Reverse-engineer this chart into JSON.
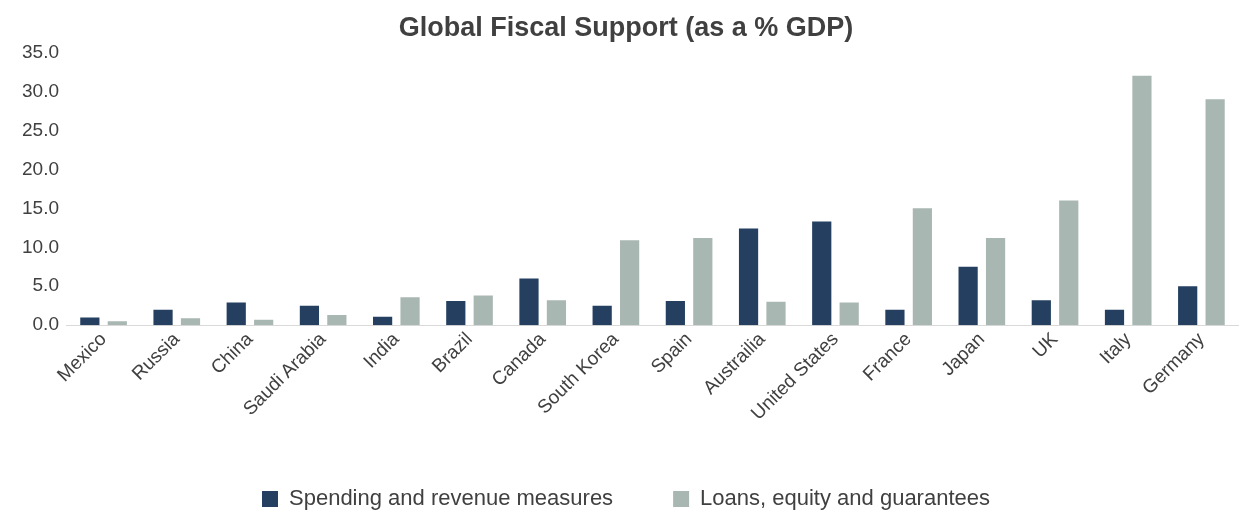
{
  "chart_data": {
    "type": "bar",
    "title": "Global Fiscal Support (as a % GDP)",
    "categories": [
      "Mexico",
      "Russia",
      "China",
      "Saudi Arabia",
      "India",
      "Brazil",
      "Canada",
      "South Korea",
      "Spain",
      "Austrailia",
      "United States",
      "France",
      "Japan",
      "UK",
      "Italy",
      "Germany"
    ],
    "series": [
      {
        "name": "Spending and revenue measures",
        "color": "#243f60",
        "values": [
          1.0,
          2.0,
          2.9,
          2.5,
          1.1,
          3.1,
          6.0,
          2.5,
          3.1,
          12.4,
          13.3,
          2.0,
          7.5,
          3.2,
          2.0,
          5.0
        ]
      },
      {
        "name": "Loans, equity and guarantees",
        "color": "#a9b7b3",
        "values": [
          0.5,
          0.9,
          0.7,
          1.3,
          3.6,
          3.8,
          3.2,
          10.9,
          11.2,
          3.0,
          2.9,
          15.0,
          11.2,
          16.0,
          32.0,
          29.0
        ]
      }
    ],
    "ylim": [
      0,
      35
    ],
    "yticks": [
      {
        "value": 0,
        "label": "0.0"
      },
      {
        "value": 5,
        "label": "5.0"
      },
      {
        "value": 10,
        "label": "10.0"
      },
      {
        "value": 15,
        "label": "15.0"
      },
      {
        "value": 20,
        "label": "20.0"
      },
      {
        "value": 25,
        "label": "25.0"
      },
      {
        "value": 30,
        "label": "30.0"
      },
      {
        "value": 35,
        "label": "35.0"
      }
    ],
    "grid": false,
    "legend": "bottom"
  }
}
